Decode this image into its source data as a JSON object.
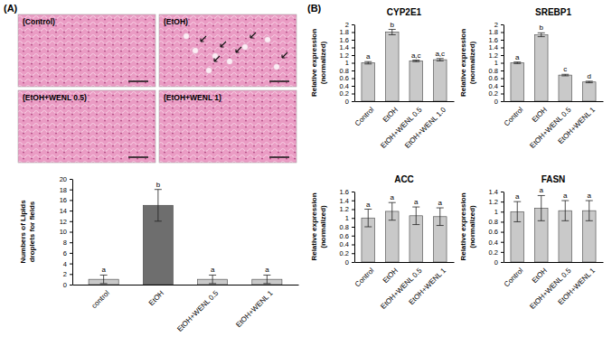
{
  "figure": {
    "panel_labels": [
      "(A)",
      "(B)"
    ],
    "micrographs": [
      {
        "label": "(Control)"
      },
      {
        "label": "(EtOH)"
      },
      {
        "label": "(EtOH+WENL 0.5)"
      },
      {
        "label": "(EtOH+WENL 1)"
      }
    ]
  },
  "chart_data": [
    {
      "type": "bar",
      "y_label": [
        "Numbers of Lipids",
        "droplets for fields"
      ],
      "categories": [
        "control",
        "EtOH",
        "EtOH+WENL 0.5",
        "EtOH+WENL 1"
      ],
      "values": [
        1,
        15,
        1,
        1
      ],
      "errors": [
        0.8,
        3,
        0.8,
        0.8
      ],
      "significance": [
        "a",
        "b",
        "a",
        "a"
      ],
      "colors": [
        "#c9c9c9",
        "#6e6e6e",
        "#c9c9c9",
        "#c9c9c9"
      ],
      "ylim": [
        0,
        20
      ],
      "yticks": [
        0,
        2,
        4,
        6,
        8,
        10,
        12,
        14,
        16,
        18,
        20
      ],
      "grid": false
    },
    {
      "type": "bar",
      "title": "CYP2E1",
      "y_label": [
        "Relative expression",
        "(normalized)"
      ],
      "categories": [
        "Control",
        "EtOH",
        "EtOH+WENL 0.5",
        "EtOH+WENL 1.0"
      ],
      "values": [
        1,
        1.8,
        1.05,
        1.08
      ],
      "errors": [
        0.03,
        0.07,
        0.02,
        0.03
      ],
      "significance": [
        "a",
        "b",
        "a,c",
        "a,c"
      ],
      "color": "#c9c9c9",
      "ylim": [
        0,
        2
      ],
      "yticks": [
        0,
        0.2,
        0.4,
        0.6,
        0.8,
        1,
        1.2,
        1.4,
        1.6,
        1.8,
        2
      ],
      "grid": false
    },
    {
      "type": "bar",
      "title": "SREBP1",
      "y_label": [
        "Relative expression",
        "(normalized)"
      ],
      "categories": [
        "Control",
        "EtOH",
        "EtOH+WENL 0.5",
        "EtOH+WENL 1"
      ],
      "values": [
        1,
        1.73,
        0.68,
        0.5
      ],
      "errors": [
        0.02,
        0.05,
        0.02,
        0.02
      ],
      "significance": [
        "a",
        "b",
        "c",
        "d"
      ],
      "color": "#c9c9c9",
      "ylim": [
        0,
        2
      ],
      "yticks": [
        0,
        0.2,
        0.4,
        0.6,
        0.8,
        1,
        1.2,
        1.4,
        1.6,
        1.8,
        2
      ],
      "grid": false
    },
    {
      "type": "bar",
      "title": "ACC",
      "y_label": [
        "Relative expression",
        "(normalized)"
      ],
      "categories": [
        "Control",
        "EtOH",
        "EtOH+WENL 0.5",
        "EtOH+WENL 1"
      ],
      "values": [
        1,
        1.15,
        1.05,
        1.03
      ],
      "errors": [
        0.2,
        0.2,
        0.2,
        0.2
      ],
      "significance": [
        "a",
        "a",
        "a",
        "a"
      ],
      "color": "#c9c9c9",
      "ylim": [
        0,
        1.6
      ],
      "yticks": [
        0,
        0.2,
        0.4,
        0.6,
        0.8,
        1,
        1.2,
        1.4,
        1.6
      ],
      "grid": false
    },
    {
      "type": "bar",
      "title": "FASN",
      "y_label": [
        "Relative expression",
        "(normalized)"
      ],
      "categories": [
        "Control",
        "EtOH",
        "EtOH+WENL 0.5",
        "EtOH+WENL 1"
      ],
      "values": [
        1,
        1.07,
        1.02,
        1.02
      ],
      "errors": [
        0.2,
        0.25,
        0.2,
        0.2
      ],
      "significance": [
        "a",
        "a",
        "a",
        "a"
      ],
      "color": "#c9c9c9",
      "ylim": [
        0,
        1.4
      ],
      "yticks": [
        0,
        0.2,
        0.4,
        0.6,
        0.8,
        1,
        1.2,
        1.4
      ],
      "grid": false
    }
  ]
}
